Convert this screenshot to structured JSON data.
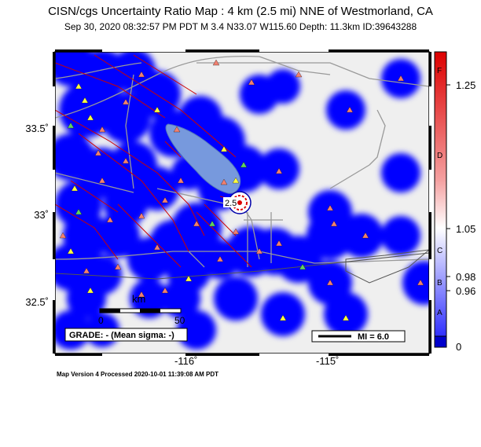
{
  "title": "CISN/cgs Uncertainty Ratio Map : 4 km (2.5 mi) NNE of Westmorland, CA",
  "subtitle": "Sep 30, 2020 08:32:57 PM PDT   M 3.4   N33.07 W115.60   Depth: 11.3km   ID:39643288",
  "footer": "Map Version 4 Processed 2020-10-01 11:39:08 AM PDT",
  "lat_labels": [
    "33.5˚",
    "33˚",
    "32.5˚"
  ],
  "lon_labels": [
    "-116˚",
    "-115˚"
  ],
  "scale": {
    "unit": "km",
    "start": "0",
    "end": "50"
  },
  "grade_box": "GRADE: - (Mean sigma: -)",
  "mi_legend": "MI = 6.0",
  "epicenter_label": "2.5",
  "colorbar": {
    "values": [
      "1.25",
      "1.05",
      "0.98",
      "0.96",
      "0"
    ],
    "grades": [
      "F",
      "D",
      "C",
      "B",
      "A"
    ]
  },
  "colors": {
    "station_triangle": "#f08070",
    "station_triangle_yellow": "#ffff40",
    "station_triangle_green": "#60d060",
    "coverage": "#0000ff",
    "lake": "#7799dd",
    "fault": "#cc0000",
    "road": "#999999",
    "background": "#eeeeee"
  }
}
